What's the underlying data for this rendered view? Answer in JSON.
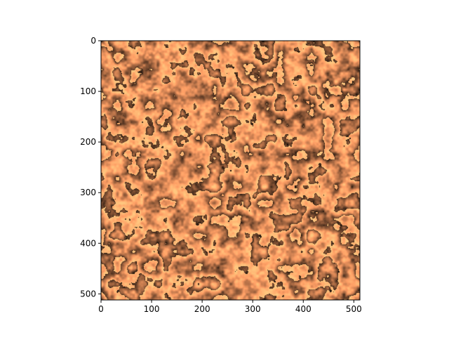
{
  "chart_data": {
    "type": "heatmap",
    "title": "",
    "xlabel": "",
    "ylabel": "",
    "colormap": "copper",
    "colormap_stops": [
      "#000000",
      "#4a2f1e",
      "#9b6342",
      "#e6925d",
      "#ffc77f"
    ],
    "image_width": 512,
    "image_height": 512,
    "xlim": [
      0,
      512
    ],
    "ylim": [
      512,
      0
    ],
    "x_ticks": [
      0,
      100,
      200,
      300,
      400,
      500
    ],
    "y_ticks": [
      0,
      100,
      200,
      300,
      400,
      500
    ],
    "x_tick_labels": [
      "0",
      "100",
      "200",
      "300",
      "400",
      "500"
    ],
    "y_tick_labels": [
      "0",
      "100",
      "200",
      "300",
      "400",
      "500"
    ],
    "grid": false,
    "legend": "none",
    "pattern": "periodic cellular noise with banded contour-like rings"
  }
}
